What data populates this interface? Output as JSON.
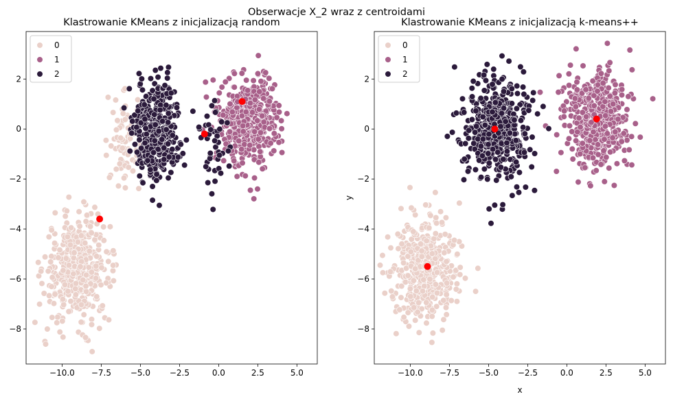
{
  "figure": {
    "suptitle": "Obserwacje X_2 wraz z centroidami"
  },
  "chart_data": [
    {
      "type": "scatter",
      "title": "Klastrowanie KMeans z inicjalizacją random",
      "xlabel": "",
      "ylabel": "",
      "xlim": [
        -12.3,
        6.3
      ],
      "ylim": [
        -9.4,
        3.9
      ],
      "xticks": [
        -10.0,
        -7.5,
        -5.0,
        -2.5,
        0.0,
        2.5,
        5.0
      ],
      "xtick_labels": [
        "−10.0",
        "−7.5",
        "−5.0",
        "−2.5",
        "0.0",
        "2.5",
        "5.0"
      ],
      "yticks": [
        2,
        0,
        -2,
        -4,
        -6,
        -8
      ],
      "ytick_labels": [
        "2",
        "0",
        "−2",
        "−4",
        "−6",
        "−8"
      ],
      "legend": {
        "placement": "top-left",
        "entries": [
          "0",
          "1",
          "2"
        ]
      },
      "grid": false,
      "clusters": [
        {
          "label": "0",
          "color": "#ead0c9",
          "regions": [
            {
              "center": [
                -9.0,
                -5.6
              ],
              "spread": [
                1.05,
                1.05
              ],
              "count": 430
            },
            {
              "center": [
                -6.0,
                -0.4
              ],
              "spread": [
                0.55,
                0.9
              ],
              "count": 80
            }
          ]
        },
        {
          "label": "1",
          "color": "#a8608a",
          "regions": [
            {
              "center": [
                2.0,
                0.4
              ],
              "spread": [
                0.95,
                0.95
              ],
              "count": 420
            }
          ]
        },
        {
          "label": "2",
          "color": "#2b1a3b",
          "regions": [
            {
              "center": [
                -4.0,
                0.0
              ],
              "spread": [
                0.75,
                0.95
              ],
              "count": 400
            },
            {
              "center": [
                -0.3,
                -0.8
              ],
              "spread": [
                0.5,
                0.9
              ],
              "count": 45
            }
          ]
        }
      ],
      "centroids": {
        "color": "#ff0000",
        "points": [
          [
            -7.6,
            -3.6
          ],
          [
            1.5,
            1.1
          ],
          [
            -0.9,
            -0.2
          ]
        ]
      }
    },
    {
      "type": "scatter",
      "title": "Klastrowanie KMeans z inicjalizacją k-means++",
      "xlabel": "x",
      "ylabel": "y",
      "xlim": [
        -12.3,
        6.3
      ],
      "ylim": [
        -9.4,
        3.9
      ],
      "xticks": [
        -10.0,
        -7.5,
        -5.0,
        -2.5,
        0.0,
        2.5,
        5.0
      ],
      "xtick_labels": [
        "−10.0",
        "−7.5",
        "−5.0",
        "−2.5",
        "0.0",
        "2.5",
        "5.0"
      ],
      "yticks": [
        2,
        0,
        -2,
        -4,
        -6,
        -8
      ],
      "ytick_labels": [
        "2",
        "0",
        "−2",
        "−4",
        "−6",
        "−8"
      ],
      "legend": {
        "placement": "top-left",
        "entries": [
          "0",
          "1",
          "2"
        ]
      },
      "grid": false,
      "clusters": [
        {
          "label": "0",
          "color": "#ead0c9",
          "regions": [
            {
              "center": [
                -9.0,
                -5.6
              ],
              "spread": [
                1.05,
                1.05
              ],
              "count": 430
            }
          ]
        },
        {
          "label": "1",
          "color": "#a8608a",
          "regions": [
            {
              "center": [
                1.9,
                0.5
              ],
              "spread": [
                1.0,
                1.0
              ],
              "count": 460
            }
          ]
        },
        {
          "label": "2",
          "color": "#2b1a3b",
          "regions": [
            {
              "center": [
                -4.5,
                0.0
              ],
              "spread": [
                1.05,
                1.05
              ],
              "count": 470
            }
          ]
        }
      ],
      "centroids": {
        "color": "#ff0000",
        "points": [
          [
            -8.9,
            -5.5
          ],
          [
            1.9,
            0.4
          ],
          [
            -4.6,
            0.0
          ]
        ]
      }
    }
  ]
}
